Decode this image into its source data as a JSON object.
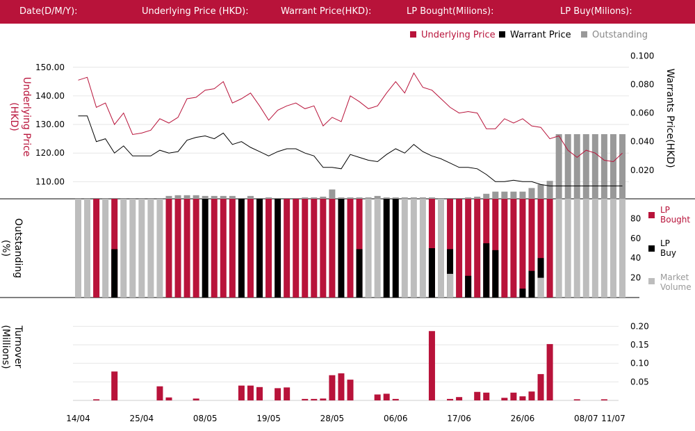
{
  "header": {
    "date_label": "Date(D/M/Y):",
    "underlying_label": "Underlying Price (HKD):",
    "warrant_label": "Warrant  Price(HKD):",
    "lp_bought_label": "LP Bought(Milions):",
    "lp_buy_label": "LP Buy(Milions):"
  },
  "legend_top": {
    "underlying": "Underlying Price",
    "warrant": "Warrant  Price",
    "outstanding": "Outstanding"
  },
  "legend_mid": {
    "lp_bought_1": "LP",
    "lp_bought_2": "Bought",
    "lp_buy_1": "LP",
    "lp_buy_2": "Buy",
    "market_1": "Market",
    "market_2": "Volume"
  },
  "axis_titles": {
    "left_top_1": "Underlying Price",
    "left_top_2": "(HKD)",
    "right_top": "Warrants  Price(HKD)",
    "left_mid_1": "Outstanding",
    "left_mid_2": "(%)",
    "left_bot_1": "Turnover",
    "left_bot_2": "(Millions)"
  },
  "colors": {
    "header": "#b8133a",
    "underlying": "#b8133a",
    "warrant": "#000000",
    "outstanding": "#999999",
    "lp_bought": "#b8133a",
    "lp_buy": "#000000",
    "market": "#bdbdbd",
    "turnover": "#b8133a"
  },
  "chart_data": [
    {
      "type": "line",
      "name": "price",
      "x_labels": [
        "14/04",
        "25/04",
        "08/05",
        "19/05",
        "28/05",
        "06/06",
        "17/06",
        "26/06",
        "08/07",
        "11/07"
      ],
      "x_label_index": [
        0,
        7,
        14,
        21,
        28,
        35,
        42,
        49,
        56,
        59
      ],
      "underlying_price": [
        145.5,
        146.5,
        136,
        137.5,
        130,
        134,
        126.5,
        127,
        128,
        132,
        130.5,
        132.5,
        139,
        139.5,
        142,
        142.5,
        145,
        137.5,
        139,
        141,
        136.5,
        131.5,
        135,
        136.5,
        137.5,
        135.5,
        136.5,
        129.5,
        132.5,
        131,
        140,
        138,
        135.5,
        136.5,
        141,
        145,
        141,
        148,
        143,
        142,
        139,
        136,
        134,
        134.5,
        134,
        128.5,
        128.5,
        132,
        130.5,
        132,
        129.5,
        129,
        125,
        126,
        121,
        118.5,
        121,
        120,
        117.5,
        117,
        120
      ],
      "warrant_price": [
        0.058,
        0.058,
        0.04,
        0.042,
        0.032,
        0.037,
        0.03,
        0.03,
        0.03,
        0.034,
        0.032,
        0.033,
        0.041,
        0.043,
        0.044,
        0.042,
        0.046,
        0.038,
        0.04,
        0.036,
        0.033,
        0.03,
        0.033,
        0.035,
        0.035,
        0.032,
        0.03,
        0.022,
        0.022,
        0.021,
        0.031,
        0.029,
        0.027,
        0.026,
        0.031,
        0.035,
        0.032,
        0.038,
        0.033,
        0.03,
        0.028,
        0.025,
        0.022,
        0.022,
        0.021,
        0.017,
        0.012,
        0.012,
        0.013,
        0.012,
        0.012,
        0.01,
        0.009,
        0.009,
        0.009,
        0.009,
        0.009,
        0.009,
        0.009,
        0.009,
        0.009
      ],
      "outstanding": [
        0,
        0,
        0,
        0,
        0,
        0,
        0,
        0,
        0,
        0,
        2,
        2.5,
        2.5,
        2.5,
        2,
        2,
        2,
        2,
        0,
        2,
        0,
        1,
        0,
        0,
        0,
        1,
        1,
        1.5,
        6.5,
        1,
        1,
        1,
        1,
        2,
        1,
        1,
        1,
        1,
        1,
        1,
        0,
        0,
        0,
        1,
        1.5,
        3.5,
        5,
        5,
        5,
        5,
        7.5,
        10,
        12.5,
        45,
        45,
        45,
        45,
        45,
        45,
        45,
        45
      ],
      "y_left_ticks": [
        110,
        120,
        130,
        140,
        150
      ],
      "y_right_ticks": [
        "0.020",
        "0.040",
        "0.060",
        "0.080",
        "0.100"
      ],
      "y_left_range": [
        104,
        157
      ],
      "y_right_range": [
        0,
        0.106
      ],
      "grid": true
    },
    {
      "type": "bar",
      "name": "outstanding_composition",
      "y_ticks": [
        20,
        40,
        60,
        80
      ],
      "ylim": [
        0,
        100
      ],
      "kind": [
        "M",
        "M",
        "B",
        "M",
        "B",
        "M",
        "M",
        "M",
        "M",
        "M",
        "B",
        "B",
        "B",
        "B",
        "K",
        "B",
        "B",
        "B",
        "K",
        "B",
        "K",
        "B",
        "K",
        "B",
        "B",
        "B",
        "B",
        "B",
        "B",
        "K",
        "B",
        "B",
        "M",
        "M",
        "K",
        "K",
        "M",
        "M",
        "M",
        "B",
        "M",
        "B",
        "B",
        "B",
        "B",
        "B",
        "B",
        "B",
        "B",
        "B",
        "B",
        "B",
        "B",
        "M",
        "M",
        "M",
        "M",
        "M",
        "M",
        "M",
        "M"
      ],
      "lp_buy_level": [
        0,
        0,
        0,
        0,
        49,
        0,
        0,
        0,
        0,
        0,
        0,
        0,
        0,
        0,
        100,
        0,
        0,
        0,
        100,
        0,
        100,
        0,
        100,
        0,
        0,
        0,
        0,
        0,
        0,
        100,
        0,
        49,
        0,
        0,
        100,
        100,
        0,
        0,
        0,
        50,
        0,
        49,
        0,
        22,
        0,
        55,
        48,
        0,
        0,
        9,
        27,
        40,
        0,
        0,
        0,
        0,
        0,
        0,
        0,
        0,
        0
      ],
      "market_level": [
        0,
        0,
        0,
        0,
        0,
        0,
        0,
        0,
        0,
        0,
        0,
        0,
        0,
        0,
        0,
        0,
        0,
        0,
        0,
        0,
        0,
        0,
        0,
        0,
        0,
        0,
        0,
        0,
        0,
        0,
        0,
        0,
        0,
        0,
        0,
        0,
        0,
        0,
        0,
        0,
        0,
        24,
        0,
        0,
        0,
        0,
        0,
        0,
        0,
        0,
        0,
        20,
        0,
        0,
        0,
        0,
        0,
        0,
        0,
        0,
        0
      ]
    },
    {
      "type": "bar",
      "name": "turnover",
      "y_ticks": [
        "0.05",
        "0.10",
        "0.15",
        "0.20"
      ],
      "ylim": [
        0,
        0.21
      ],
      "values": [
        0,
        0,
        0.003,
        0,
        0.078,
        0,
        0,
        0,
        0,
        0.038,
        0.008,
        0,
        0,
        0.005,
        0,
        0,
        0,
        0,
        0.04,
        0.04,
        0.036,
        0,
        0.033,
        0.035,
        0,
        0.004,
        0.004,
        0.005,
        0.068,
        0.073,
        0.056,
        0,
        0,
        0.016,
        0.018,
        0.004,
        0,
        0,
        0,
        0.187,
        0,
        0.004,
        0.009,
        0,
        0.023,
        0.021,
        0,
        0.007,
        0.021,
        0.011,
        0.024,
        0.071,
        0.152,
        0,
        0,
        0.003,
        0,
        0,
        0.003,
        0,
        0
      ]
    }
  ]
}
